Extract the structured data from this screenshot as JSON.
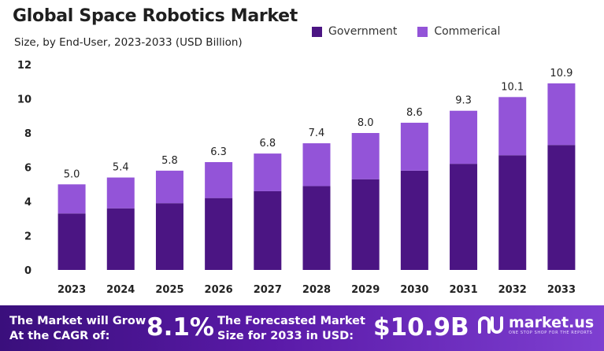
{
  "title": "Global Space Robotics Market",
  "subtitle": "Size, by End-User, 2023-2033 (USD Billion)",
  "legend": [
    {
      "label": "Government",
      "color": "#4b1583"
    },
    {
      "label": "Commerical",
      "color": "#9354d8"
    }
  ],
  "chart_data": {
    "type": "bar",
    "stacked": true,
    "categories": [
      "2023",
      "2024",
      "2025",
      "2026",
      "2027",
      "2028",
      "2029",
      "2030",
      "2031",
      "2032",
      "2033"
    ],
    "series": [
      {
        "name": "Government",
        "values": [
          3.3,
          3.6,
          3.9,
          4.2,
          4.6,
          4.9,
          5.3,
          5.8,
          6.2,
          6.7,
          7.3
        ]
      },
      {
        "name": "Commerical",
        "values": [
          1.7,
          1.8,
          1.9,
          2.1,
          2.2,
          2.5,
          2.7,
          2.8,
          3.1,
          3.4,
          3.6
        ]
      }
    ],
    "totals": [
      5.0,
      5.4,
      5.8,
      6.3,
      6.8,
      7.4,
      8.0,
      8.6,
      9.3,
      10.1,
      10.9
    ],
    "total_labels": [
      "5.0",
      "5.4",
      "5.8",
      "6.3",
      "6.8",
      "7.4",
      "8.0",
      "8.6",
      "9.3",
      "10.1",
      "10.9"
    ],
    "yticks": [
      "0",
      "2",
      "4",
      "6",
      "8",
      "10",
      "12"
    ],
    "ylim": [
      0,
      12
    ],
    "grid": false
  },
  "footer": {
    "cagr_label_1": "The Market will Grow",
    "cagr_label_2": "At the CAGR of:",
    "cagr_value": "8.1%",
    "forecast_label_1": "The Forecasted Market",
    "forecast_label_2": "Size for 2033 in USD:",
    "forecast_value": "$10.9B",
    "brand": "market.us",
    "brand_tagline": "ONE STOP SHOP FOR THE REPORTS"
  }
}
